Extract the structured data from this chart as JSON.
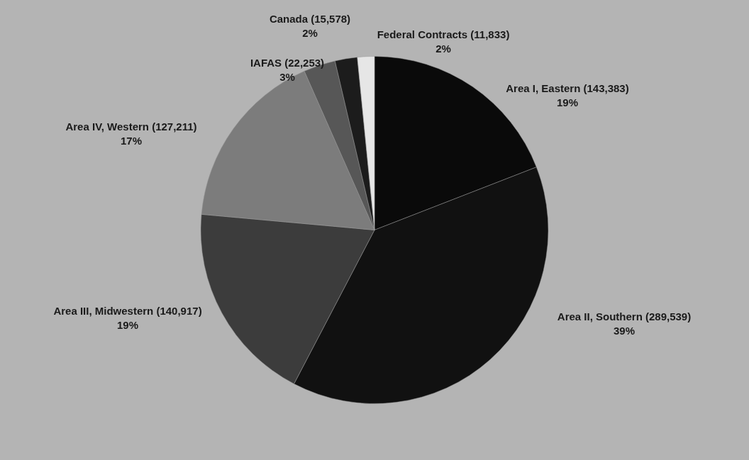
{
  "chart_data": {
    "type": "pie",
    "categories": [
      "Area I, Eastern",
      "Area II, Southern",
      "Area III, Midwestern",
      "Area IV,  Western",
      "IAFAS",
      "Canada",
      "Federal Contracts"
    ],
    "values": [
      143383,
      289539,
      140917,
      127211,
      22253,
      15578,
      11833
    ],
    "value_labels": [
      "(143,383)\n19%",
      "(289,539)\n39%",
      "(140,917)\n19%",
      "(127,211)\n17%",
      "(22,253)\n3%",
      "(15,578)\n2%",
      "(11,833)\n2%"
    ],
    "colors": [
      "#0a0a0a",
      "#111111",
      "#3c3c3c",
      "#7c7c7c",
      "#575757",
      "#1c1c1c",
      "#e6e6e6"
    ]
  }
}
